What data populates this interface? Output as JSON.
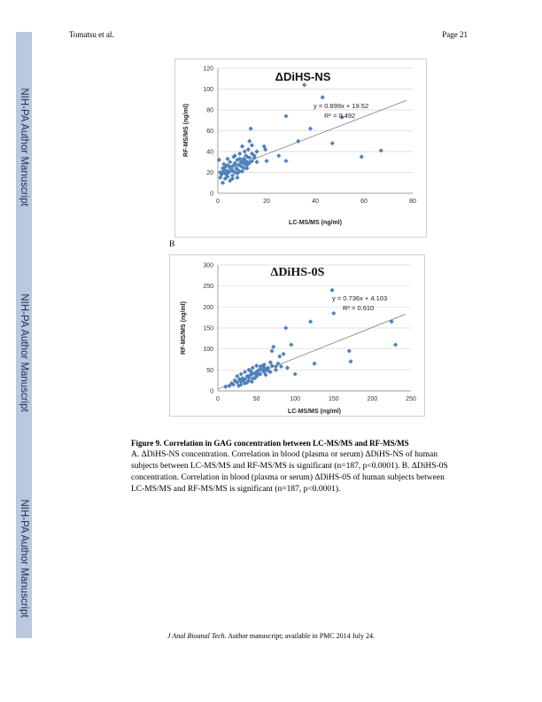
{
  "header": {
    "left": "Tomatsu et al.",
    "right": "Page 21"
  },
  "sidebar": {
    "labels": [
      "NIH-PA Author Manuscript",
      "NIH-PA Author Manuscript",
      "NIH-PA Author Manuscript"
    ],
    "color": "#b9c8de"
  },
  "panel_b_label": "B",
  "caption": {
    "title": "Figure 9. Correlation in GAG concentration between LC-MS/MS and RF-MS/MS",
    "body": "A. ΔDiHS-NS concentration. Correlation in blood (plasma or serum) ΔDiHS-NS of human subjects between LC-MS/MS and RF-MS/MS is significant (n=187, p<0.0001). B. ΔDiHS-0S concentration. Correlation in blood (plasma or serum) ΔDiHS-0S of human subjects between LC-MS/MS and RF-MS/MS is significant (n=187, p<0.0001)."
  },
  "footer": {
    "journal": "J Anal Bioanal Tech",
    "rest": ". Author manuscript; available in PMC 2014 July 24."
  },
  "chart_data": [
    {
      "type": "scatter",
      "title": "ΔDiHS-NS",
      "xlabel": "LC-MS/MS (ng/ml)",
      "ylabel": "RF-MS/MS (ng/ml)",
      "xlim": [
        0,
        80
      ],
      "ylim": [
        0,
        120
      ],
      "xticks": [
        0,
        20,
        40,
        60,
        80
      ],
      "yticks": [
        0,
        20,
        40,
        60,
        80,
        100,
        120
      ],
      "equation": "y = 0.899x + 19.52",
      "r2": "R² = 0.492",
      "trendline": {
        "slope": 0.899,
        "intercept": 19.52
      },
      "marker_color": "#4f81bd",
      "points": [
        [
          0.5,
          32
        ],
        [
          1,
          15
        ],
        [
          1.5,
          18
        ],
        [
          2,
          10
        ],
        [
          2,
          20
        ],
        [
          2.5,
          22
        ],
        [
          3,
          14
        ],
        [
          3,
          25
        ],
        [
          3.5,
          18
        ],
        [
          4,
          16
        ],
        [
          4,
          27
        ],
        [
          4.5,
          20
        ],
        [
          5,
          12
        ],
        [
          5,
          30
        ],
        [
          5.5,
          22
        ],
        [
          6,
          17
        ],
        [
          6,
          26
        ],
        [
          6.5,
          35
        ],
        [
          7,
          20
        ],
        [
          7,
          29
        ],
        [
          7.5,
          24
        ],
        [
          8,
          15
        ],
        [
          8,
          32
        ],
        [
          8.5,
          27
        ],
        [
          9,
          21
        ],
        [
          9,
          38
        ],
        [
          9.5,
          30
        ],
        [
          10,
          25
        ],
        [
          10,
          45
        ],
        [
          10.5,
          33
        ],
        [
          11,
          28
        ],
        [
          11,
          40
        ],
        [
          11.5,
          36
        ],
        [
          12,
          30
        ],
        [
          12.5,
          42
        ],
        [
          13,
          34
        ],
        [
          13,
          50
        ],
        [
          13.5,
          62
        ],
        [
          14,
          38
        ],
        [
          14,
          46
        ],
        [
          15,
          34
        ],
        [
          16,
          30
        ],
        [
          19,
          45
        ],
        [
          19.5,
          42
        ],
        [
          20,
          31
        ],
        [
          25,
          36
        ],
        [
          28,
          74
        ],
        [
          28,
          31
        ],
        [
          33,
          50
        ],
        [
          35.5,
          104
        ],
        [
          38,
          62
        ],
        [
          43,
          92
        ],
        [
          47,
          48
        ],
        [
          51,
          73
        ],
        [
          59,
          35
        ],
        [
          67,
          41
        ],
        [
          1,
          20
        ],
        [
          2,
          24
        ],
        [
          3,
          19
        ],
        [
          4,
          21
        ],
        [
          5,
          25
        ],
        [
          6,
          22
        ],
        [
          7,
          28
        ],
        [
          8,
          23
        ],
        [
          9,
          27
        ],
        [
          10,
          30
        ],
        [
          11,
          32
        ],
        [
          12,
          35
        ],
        [
          13,
          29
        ],
        [
          14,
          31
        ],
        [
          6,
          14
        ],
        [
          8,
          19
        ],
        [
          10,
          21
        ],
        [
          12,
          24
        ],
        [
          4,
          33
        ],
        [
          7,
          36
        ],
        [
          2.5,
          28
        ],
        [
          9,
          33
        ],
        [
          11,
          24
        ],
        [
          15,
          36
        ],
        [
          16,
          40
        ],
        [
          12,
          27
        ]
      ]
    },
    {
      "type": "scatter",
      "title": "ΔDiHS-0S",
      "xlabel": "LC-MS/MS (ng/ml)",
      "ylabel": "RF-MS/MS (ng/ml)",
      "xlim": [
        0,
        250
      ],
      "ylim": [
        0,
        300
      ],
      "xticks": [
        0,
        50,
        100,
        150,
        200,
        250
      ],
      "yticks": [
        0,
        50,
        100,
        150,
        200,
        250,
        300
      ],
      "equation": "y = 0.736x + 4.103",
      "r2": "R² = 0.610",
      "trendline": {
        "slope": 0.736,
        "intercept": 4.103
      },
      "marker_color": "#4f81bd",
      "points": [
        [
          10,
          10
        ],
        [
          15,
          12
        ],
        [
          18,
          18
        ],
        [
          20,
          15
        ],
        [
          22,
          25
        ],
        [
          25,
          20
        ],
        [
          25,
          35
        ],
        [
          28,
          28
        ],
        [
          30,
          22
        ],
        [
          30,
          40
        ],
        [
          32,
          30
        ],
        [
          35,
          18
        ],
        [
          35,
          45
        ],
        [
          38,
          35
        ],
        [
          40,
          25
        ],
        [
          40,
          50
        ],
        [
          42,
          38
        ],
        [
          45,
          30
        ],
        [
          45,
          55
        ],
        [
          48,
          42
        ],
        [
          50,
          35
        ],
        [
          50,
          60
        ],
        [
          52,
          48
        ],
        [
          55,
          40
        ],
        [
          55,
          58
        ],
        [
          58,
          50
        ],
        [
          60,
          45
        ],
        [
          60,
          62
        ],
        [
          62,
          38
        ],
        [
          65,
          55
        ],
        [
          68,
          45
        ],
        [
          70,
          60
        ],
        [
          70,
          95
        ],
        [
          72,
          105
        ],
        [
          75,
          50
        ],
        [
          78,
          65
        ],
        [
          80,
          82
        ],
        [
          82,
          58
        ],
        [
          85,
          88
        ],
        [
          88,
          150
        ],
        [
          90,
          55
        ],
        [
          95,
          110
        ],
        [
          100,
          40
        ],
        [
          120,
          165
        ],
        [
          125,
          65
        ],
        [
          148,
          240
        ],
        [
          150,
          185
        ],
        [
          170,
          95
        ],
        [
          172,
          70
        ],
        [
          225,
          165
        ],
        [
          230,
          110
        ],
        [
          30,
          15
        ],
        [
          35,
          28
        ],
        [
          40,
          32
        ],
        [
          45,
          42
        ],
        [
          50,
          45
        ],
        [
          55,
          52
        ],
        [
          60,
          55
        ],
        [
          65,
          48
        ],
        [
          75,
          58
        ],
        [
          38,
          20
        ],
        [
          42,
          48
        ],
        [
          48,
          30
        ],
        [
          52,
          38
        ],
        [
          58,
          60
        ],
        [
          62,
          52
        ],
        [
          68,
          68
        ],
        [
          27,
          12
        ],
        [
          33,
          25
        ],
        [
          44,
          22
        ]
      ]
    }
  ]
}
